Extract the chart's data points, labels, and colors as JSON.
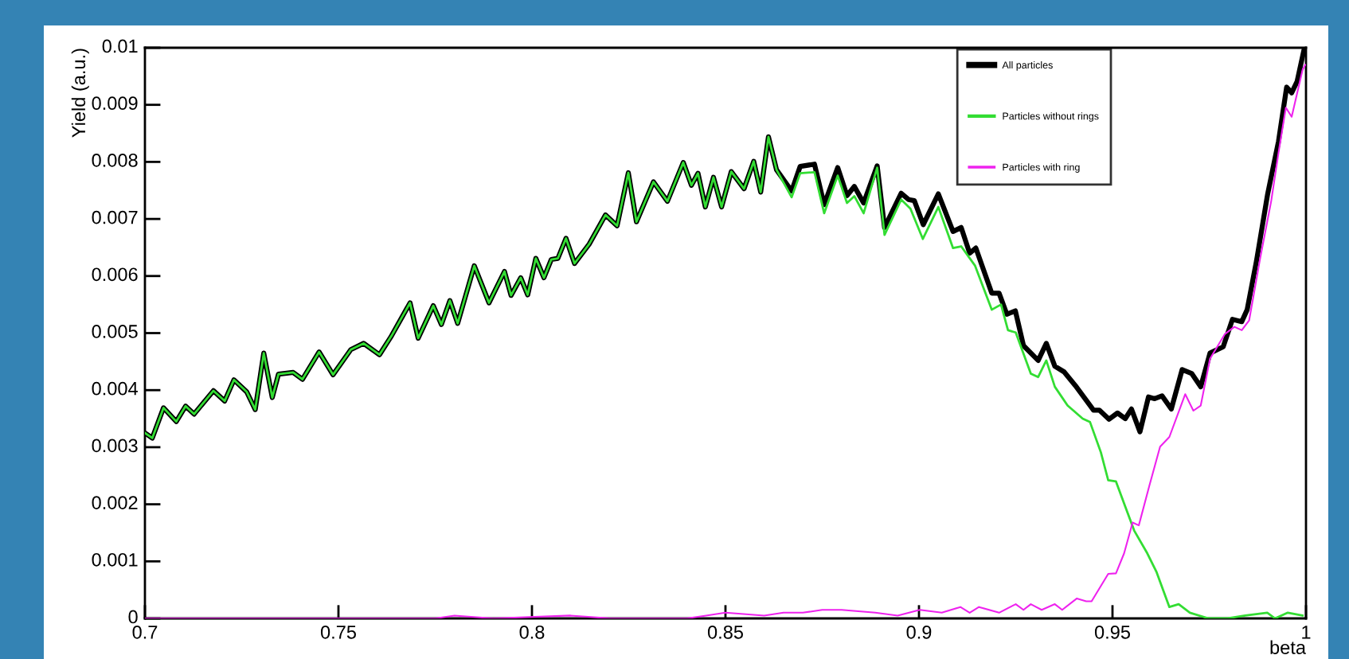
{
  "chart_data": {
    "type": "line",
    "xlabel": "beta",
    "ylabel": "Yield (a.u.)",
    "xlim": [
      0.7,
      1
    ],
    "ylim": [
      0,
      0.01
    ],
    "xticks": [
      0.7,
      0.75,
      0.8,
      0.85,
      0.9,
      0.95,
      1
    ],
    "yticks": [
      0,
      0.001,
      0.002,
      0.003,
      0.004,
      0.005,
      0.006,
      0.007,
      0.008,
      0.009,
      0.01
    ],
    "grid": false,
    "legend": "top right",
    "series": [
      {
        "name": "All particles",
        "color": "#000000",
        "x": [
          0.7,
          0.7019,
          0.7048,
          0.7081,
          0.7105,
          0.7127,
          0.7177,
          0.7206,
          0.723,
          0.7263,
          0.7285,
          0.7307,
          0.7329,
          0.7345,
          0.7383,
          0.7407,
          0.745,
          0.7486,
          0.7532,
          0.7565,
          0.7606,
          0.7637,
          0.7685,
          0.7706,
          0.7745,
          0.7766,
          0.7788,
          0.7808,
          0.7851,
          0.7889,
          0.7929,
          0.7946,
          0.7971,
          0.7989,
          0.801,
          0.8031,
          0.805,
          0.8067,
          0.8088,
          0.811,
          0.8148,
          0.819,
          0.822,
          0.8249,
          0.827,
          0.8314,
          0.835,
          0.8391,
          0.8412,
          0.8429,
          0.8448,
          0.8469,
          0.849,
          0.8515,
          0.8548,
          0.8573,
          0.8591,
          0.8611,
          0.8632,
          0.8671,
          0.8693,
          0.873,
          0.8755,
          0.879,
          0.8814,
          0.8833,
          0.8857,
          0.8892,
          0.8911,
          0.8954,
          0.8973,
          0.8988,
          0.9011,
          0.905,
          0.9088,
          0.9109,
          0.9131,
          0.9147,
          0.9188,
          0.9207,
          0.9227,
          0.9249,
          0.927,
          0.9308,
          0.9329,
          0.9351,
          0.9375,
          0.9404,
          0.9451,
          0.9466,
          0.9491,
          0.9513,
          0.9533,
          0.9549,
          0.9571,
          0.9593,
          0.9609,
          0.9628,
          0.9652,
          0.968,
          0.9705,
          0.9728,
          0.9752,
          0.9786,
          0.981,
          0.9834,
          0.9848,
          0.9872,
          0.9901,
          0.9929,
          0.995,
          0.9963,
          0.9977,
          0.9996
        ],
        "values": [
          0.00325,
          0.00316,
          0.00369,
          0.00345,
          0.00372,
          0.00358,
          0.00399,
          0.00381,
          0.00418,
          0.00397,
          0.00366,
          0.00465,
          0.00387,
          0.00428,
          0.00431,
          0.00419,
          0.00467,
          0.00427,
          0.00471,
          0.00482,
          0.00462,
          0.00495,
          0.00553,
          0.00491,
          0.00548,
          0.00515,
          0.00557,
          0.00517,
          0.00618,
          0.00553,
          0.00608,
          0.00566,
          0.00597,
          0.00567,
          0.00631,
          0.00597,
          0.00629,
          0.00631,
          0.00666,
          0.00622,
          0.00656,
          0.00707,
          0.00688,
          0.00781,
          0.00695,
          0.00765,
          0.00731,
          0.00799,
          0.00759,
          0.0078,
          0.00721,
          0.00773,
          0.00721,
          0.00783,
          0.00753,
          0.00801,
          0.00747,
          0.00844,
          0.00786,
          0.00749,
          0.00792,
          0.00796,
          0.00725,
          0.0079,
          0.00741,
          0.00757,
          0.00728,
          0.00793,
          0.00685,
          0.00745,
          0.00734,
          0.00732,
          0.0069,
          0.00744,
          0.00678,
          0.00685,
          0.0064,
          0.00649,
          0.0057,
          0.0057,
          0.00533,
          0.00539,
          0.00478,
          0.00452,
          0.00482,
          0.00442,
          0.00432,
          0.00408,
          0.00365,
          0.00365,
          0.00349,
          0.0036,
          0.0035,
          0.00367,
          0.00327,
          0.00388,
          0.00385,
          0.0039,
          0.00367,
          0.00436,
          0.00429,
          0.00406,
          0.00465,
          0.00476,
          0.00524,
          0.0052,
          0.00541,
          0.00626,
          0.00744,
          0.00836,
          0.00931,
          0.00921,
          0.00941,
          0.01
        ]
      },
      {
        "name": "Particles without rings",
        "color": "#33dd33",
        "x": [
          0.7,
          0.7019,
          0.7048,
          0.7081,
          0.7105,
          0.7127,
          0.7177,
          0.7206,
          0.723,
          0.7263,
          0.7285,
          0.7307,
          0.7329,
          0.7345,
          0.7383,
          0.7407,
          0.745,
          0.7486,
          0.7532,
          0.7565,
          0.7606,
          0.7637,
          0.7685,
          0.7706,
          0.7745,
          0.7766,
          0.7788,
          0.7808,
          0.7851,
          0.7889,
          0.7929,
          0.7946,
          0.7971,
          0.7989,
          0.801,
          0.8031,
          0.805,
          0.8067,
          0.8088,
          0.811,
          0.8148,
          0.819,
          0.822,
          0.8249,
          0.827,
          0.8314,
          0.835,
          0.8391,
          0.8412,
          0.8429,
          0.8448,
          0.8469,
          0.849,
          0.8515,
          0.8548,
          0.8573,
          0.8591,
          0.8611,
          0.8632,
          0.8671,
          0.8693,
          0.873,
          0.8755,
          0.879,
          0.8814,
          0.8833,
          0.8857,
          0.8892,
          0.8911,
          0.8954,
          0.8978,
          0.901,
          0.905,
          0.9088,
          0.9109,
          0.9145,
          0.9188,
          0.9212,
          0.923,
          0.925,
          0.9289,
          0.9308,
          0.9329,
          0.9351,
          0.9384,
          0.9423,
          0.9442,
          0.947,
          0.9489,
          0.9509,
          0.9533,
          0.9556,
          0.959,
          0.9614,
          0.9647,
          0.9671,
          0.97,
          0.9748,
          0.9795,
          0.9843,
          0.99,
          0.992,
          0.9953,
          0.9991
        ],
        "values": [
          0.00325,
          0.00316,
          0.00369,
          0.00345,
          0.00372,
          0.00358,
          0.00399,
          0.00381,
          0.00418,
          0.00397,
          0.00366,
          0.00465,
          0.00387,
          0.00428,
          0.00431,
          0.00419,
          0.00467,
          0.00427,
          0.00471,
          0.00482,
          0.00462,
          0.00495,
          0.00553,
          0.00491,
          0.00548,
          0.00515,
          0.00557,
          0.00517,
          0.00618,
          0.00553,
          0.00608,
          0.00566,
          0.00597,
          0.00567,
          0.00631,
          0.00597,
          0.00629,
          0.00631,
          0.00666,
          0.00622,
          0.00656,
          0.00707,
          0.00688,
          0.00781,
          0.00695,
          0.00765,
          0.00731,
          0.00799,
          0.00759,
          0.0078,
          0.00721,
          0.00773,
          0.00721,
          0.00783,
          0.00753,
          0.00801,
          0.00747,
          0.00844,
          0.00786,
          0.00738,
          0.0078,
          0.00782,
          0.0071,
          0.00776,
          0.00728,
          0.0074,
          0.0071,
          0.0079,
          0.00672,
          0.00734,
          0.00718,
          0.00665,
          0.00721,
          0.00649,
          0.00652,
          0.00618,
          0.00541,
          0.0055,
          0.00505,
          0.00501,
          0.00429,
          0.00423,
          0.00452,
          0.00406,
          0.00373,
          0.0035,
          0.00344,
          0.00291,
          0.00242,
          0.0024,
          0.00196,
          0.00154,
          0.00114,
          0.00081,
          0.0002,
          0.00025,
          0.0001,
          0.0,
          0.0,
          5e-05,
          0.0001,
          0.0,
          0.0001,
          5e-05
        ]
      },
      {
        "name": "Particles with ring",
        "color": "#ee22ee",
        "x": [
          0.7,
          0.76,
          0.775,
          0.78,
          0.79,
          0.81,
          0.82,
          0.84,
          0.845,
          0.85,
          0.86,
          0.865,
          0.87,
          0.875,
          0.88,
          0.8887,
          0.8945,
          0.9002,
          0.9059,
          0.9107,
          0.9131,
          0.9155,
          0.9207,
          0.925,
          0.927,
          0.9289,
          0.9317,
          0.9351,
          0.937,
          0.9408,
          0.9432,
          0.9446,
          0.9489,
          0.9509,
          0.953,
          0.9552,
          0.9568,
          0.9595,
          0.9623,
          0.9647,
          0.9688,
          0.9709,
          0.9728,
          0.9752,
          0.979,
          0.9815,
          0.9834,
          0.9853,
          0.9881,
          0.991,
          0.9929,
          0.9948,
          0.9963,
          0.9991,
          0.9998
        ],
        "values": [
          0.0,
          0.0,
          0.0,
          5e-05,
          0.0,
          5e-05,
          0.0,
          0.0,
          5e-05,
          0.0001,
          5e-05,
          0.0001,
          0.0001,
          0.00015,
          0.00015,
          0.0001,
          5e-05,
          0.00015,
          0.0001,
          0.0002,
          0.0001,
          0.0002,
          0.0001,
          0.00025,
          0.00015,
          0.00025,
          0.00015,
          0.00025,
          0.00015,
          0.00035,
          0.0003,
          0.0003,
          0.00078,
          0.00079,
          0.00114,
          0.00168,
          0.00163,
          0.00232,
          0.00301,
          0.00318,
          0.00393,
          0.00364,
          0.00373,
          0.00455,
          0.00498,
          0.00511,
          0.00505,
          0.00522,
          0.00629,
          0.00731,
          0.00816,
          0.00895,
          0.00879,
          0.00961,
          0.0097
        ]
      }
    ]
  }
}
